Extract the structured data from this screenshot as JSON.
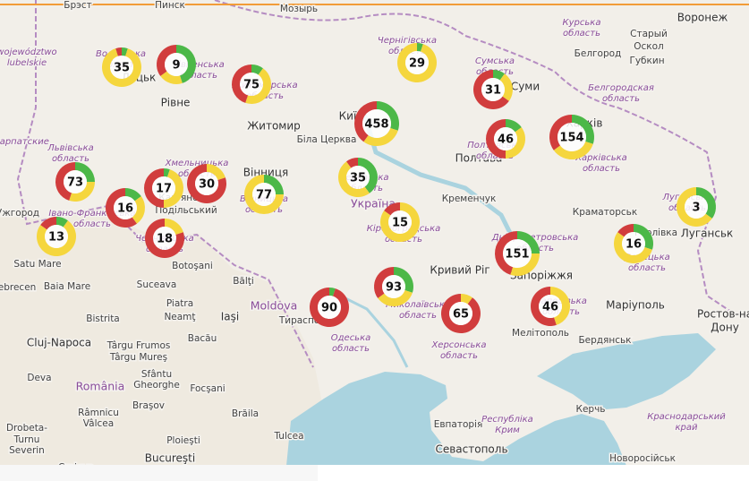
{
  "map": {
    "cities": [
      "Брэст",
      "Пинск",
      "Мозырь",
      "Воронеж",
      "Старый",
      "Оскол",
      "Губкин",
      "Луцьк",
      "Рівне",
      "Житомир",
      "Київ",
      "Біла Церква",
      "Суми",
      "Полтава",
      "Харків",
      "Кременчук",
      "Вінниця",
      "Кам'янець-",
      "Подільський",
      "Краматорськ",
      "Горлівка",
      "Луганськ",
      "Кривий Ріг",
      "Запоріжжя",
      "Маріуполь",
      "Ростов-на",
      "Дону",
      "Мелітополь",
      "Бердянськ",
      "Тирасполь",
      "Ужгород",
      "Satu Mare",
      "Baia Mare",
      "Debrecen",
      "Botoşani",
      "Bălţi",
      "Piatra",
      "Neamţ",
      "Iaşi",
      "Bistrita",
      "Târgu Frumos",
      "Cluj-Napoca",
      "Târgu Mureş",
      "Bacău",
      "Sfântu",
      "Gheorghe",
      "Focşani",
      "Deva",
      "Braşov",
      "Brăila",
      "Râmnicu",
      "Vâlcea",
      "Ploieşti",
      "Drobeta-",
      "Turnu",
      "Severin",
      "Bucureşti",
      "Craiova",
      "Евпаторія",
      "Севастополь",
      "Керчь",
      "Новоросійськ",
      "Белгород",
      "Suceava",
      "Tulcea"
    ],
    "countries": [
      "Україна",
      "Moldova",
      "România"
    ],
    "regions": [
      [
        "województwo",
        "lubelskie"
      ],
      [
        "Волинська",
        "область"
      ],
      [
        "Рівненська",
        "область"
      ],
      [
        "Житомирська",
        "область"
      ],
      [
        "Чернігівська",
        "область"
      ],
      [
        "Сумська",
        "область"
      ],
      [
        "Курська",
        "область"
      ],
      [
        "Белгородская",
        "область"
      ],
      [
        "Полтавська",
        "область"
      ],
      [
        "Харківська",
        "область"
      ],
      [
        "Черкаська",
        "область"
      ],
      [
        "Кіровоградська",
        "область"
      ],
      [
        "Дніпропетровська",
        "область"
      ],
      [
        "Донецька",
        "область"
      ],
      [
        "Луганська",
        "область"
      ],
      [
        "Хмельницька",
        "область"
      ],
      [
        "Вінницька",
        "область"
      ],
      [
        "Львівська",
        "область"
      ],
      [
        "Івано-Франківська",
        "область"
      ],
      [
        "Чернівецька",
        "область"
      ],
      [
        "Миколаївська",
        "область"
      ],
      [
        "Одеська",
        "область"
      ],
      [
        "Херсонська",
        "область"
      ],
      [
        "Запорізька",
        "область"
      ],
      [
        "Республіка",
        "Крим"
      ],
      [
        "Краснодарський",
        "край"
      ],
      [
        "Закарпатские",
        ""
      ]
    ],
    "clusters": [
      {
        "count": 35,
        "shares": [
          5,
          90,
          5
        ]
      },
      {
        "count": 9,
        "shares": [
          45,
          20,
          35
        ]
      },
      {
        "count": 75,
        "shares": [
          10,
          45,
          45
        ]
      },
      {
        "count": 29,
        "shares": [
          5,
          95,
          0
        ]
      },
      {
        "count": 31,
        "shares": [
          10,
          25,
          65
        ]
      },
      {
        "count": 458,
        "shares": [
          30,
          30,
          40
        ]
      },
      {
        "count": 46,
        "shares": [
          15,
          35,
          50
        ]
      },
      {
        "count": 154,
        "shares": [
          30,
          35,
          35
        ]
      },
      {
        "count": 73,
        "shares": [
          25,
          30,
          45
        ]
      },
      {
        "count": 16,
        "shares": [
          15,
          25,
          60
        ]
      },
      {
        "count": 17,
        "shares": [
          5,
          45,
          50
        ]
      },
      {
        "count": 30,
        "shares": [
          0,
          20,
          80
        ]
      },
      {
        "count": 77,
        "shares": [
          25,
          75,
          0
        ]
      },
      {
        "count": 35,
        "shares": [
          40,
          50,
          10
        ]
      },
      {
        "count": 13,
        "shares": [
          10,
          75,
          15
        ]
      },
      {
        "count": 18,
        "shares": [
          0,
          20,
          80
        ]
      },
      {
        "count": 15,
        "shares": [
          0,
          85,
          15
        ]
      },
      {
        "count": 151,
        "shares": [
          25,
          30,
          45
        ]
      },
      {
        "count": 16,
        "shares": [
          30,
          55,
          15
        ]
      },
      {
        "count": 3,
        "shares": [
          35,
          65,
          0
        ]
      },
      {
        "count": 90,
        "shares": [
          5,
          0,
          95
        ]
      },
      {
        "count": 93,
        "shares": [
          30,
          35,
          35
        ]
      },
      {
        "count": 65,
        "shares": [
          0,
          10,
          90
        ]
      },
      {
        "count": 46,
        "shares": [
          0,
          45,
          55
        ]
      }
    ],
    "share_colors": [
      "#4cb848",
      "#f5d63d",
      "#d13d3d"
    ]
  }
}
